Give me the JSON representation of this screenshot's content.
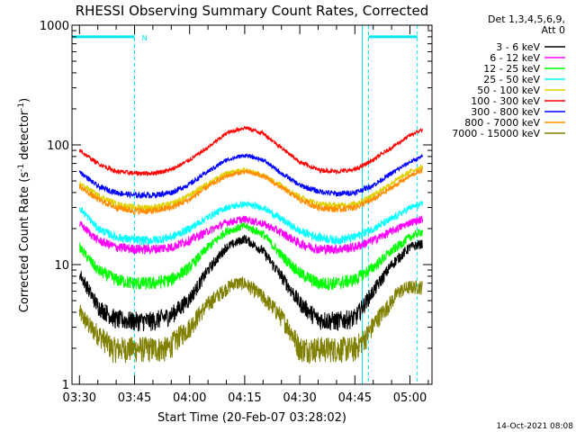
{
  "chart_data": {
    "type": "line",
    "title": "RHESSI Observing Summary Count Rates, Corrected",
    "ylabel": "Corrected Count Rate (s",
    "ylabel_sup1": "-1",
    "ylabel_mid": " detector",
    "ylabel_sup2": "-1",
    "ylabel_end": ")",
    "xlabel": "Start Time (20-Feb-07 03:28:02)",
    "yscale": "log",
    "ylim": [
      1,
      1000
    ],
    "xlim_minutes": [
      -2.03,
      96
    ],
    "x_unit": "minutes after 03:30",
    "y_ticks": [
      {
        "value": 1,
        "label": "1"
      },
      {
        "value": 10,
        "label": "10"
      },
      {
        "value": 100,
        "label": "100"
      },
      {
        "value": 1000,
        "label": "1000"
      }
    ],
    "x_ticks": [
      {
        "value": 0,
        "label": "03:30"
      },
      {
        "value": 15,
        "label": "03:45"
      },
      {
        "value": 30,
        "label": "04:00"
      },
      {
        "value": 45,
        "label": "04:15"
      },
      {
        "value": 60,
        "label": "04:30"
      },
      {
        "value": 75,
        "label": "04:45"
      },
      {
        "value": 90,
        "label": "05:00"
      }
    ],
    "legend_header": [
      "Det 1,3,4,5,6,9,",
      "Att 0"
    ],
    "legend_position": "right",
    "series": [
      {
        "name": "3 - 6 keV",
        "color": "#000000",
        "x": [
          0,
          5,
          10,
          15,
          20,
          25,
          30,
          35,
          40,
          45,
          50,
          55,
          60,
          65,
          70,
          75,
          80,
          85,
          90,
          93.5
        ],
        "y": [
          8.5,
          4.5,
          3.5,
          3.4,
          3.4,
          3.8,
          5.2,
          9,
          14,
          16.5,
          13,
          8,
          4.8,
          3.5,
          3.4,
          3.6,
          6,
          10,
          14,
          15
        ]
      },
      {
        "name": "6 - 12 keV",
        "color": "#ff00ff",
        "x": [
          0,
          5,
          10,
          15,
          20,
          25,
          30,
          35,
          40,
          45,
          50,
          55,
          60,
          65,
          70,
          75,
          80,
          85,
          90,
          93.5
        ],
        "y": [
          22,
          16,
          14,
          13.5,
          13.5,
          14,
          16,
          19,
          22.5,
          24,
          22,
          18.5,
          15,
          13.5,
          13.5,
          14,
          16,
          19,
          22.5,
          24
        ]
      },
      {
        "name": "12 - 25 keV",
        "color": "#00ff00",
        "x": [
          0,
          5,
          10,
          15,
          20,
          25,
          30,
          35,
          40,
          45,
          50,
          55,
          60,
          65,
          70,
          75,
          80,
          85,
          90,
          93.5
        ],
        "y": [
          14,
          9,
          7.5,
          7,
          7,
          7.5,
          9.5,
          14,
          19,
          21,
          18,
          12,
          8.5,
          7,
          7,
          7.5,
          9.5,
          13,
          17,
          19
        ]
      },
      {
        "name": "25 - 50 keV",
        "color": "#00ffff",
        "x": [
          0,
          5,
          10,
          15,
          20,
          25,
          30,
          35,
          40,
          45,
          50,
          55,
          60,
          65,
          70,
          75,
          80,
          85,
          90,
          93.5
        ],
        "y": [
          30,
          20,
          17,
          16,
          16,
          17,
          20,
          25,
          30,
          32,
          30,
          24,
          19,
          17,
          16,
          17,
          20,
          24,
          30,
          32
        ]
      },
      {
        "name": "50 - 100 keV",
        "color": "#e0d000",
        "x": [
          0,
          5,
          10,
          15,
          20,
          25,
          30,
          35,
          40,
          45,
          50,
          55,
          60,
          65,
          70,
          75,
          80,
          85,
          90,
          93.5
        ],
        "y": [
          48,
          38,
          32,
          30,
          30,
          32,
          38,
          48,
          58,
          62,
          56,
          46,
          37,
          32,
          31,
          32,
          38,
          48,
          60,
          66
        ]
      },
      {
        "name": "100 - 300 keV",
        "color": "#ff0000",
        "x": [
          0,
          5,
          10,
          15,
          20,
          25,
          30,
          35,
          40,
          45,
          50,
          55,
          60,
          65,
          70,
          75,
          80,
          85,
          90,
          93.5
        ],
        "y": [
          90,
          70,
          60,
          58,
          58,
          62,
          75,
          95,
          125,
          140,
          125,
          95,
          72,
          62,
          60,
          62,
          75,
          95,
          120,
          135
        ]
      },
      {
        "name": "300 - 800 keV",
        "color": "#0000ff",
        "x": [
          0,
          5,
          10,
          15,
          20,
          25,
          30,
          35,
          40,
          45,
          50,
          55,
          60,
          65,
          70,
          75,
          80,
          85,
          90,
          93.5
        ],
        "y": [
          60,
          45,
          40,
          38,
          38,
          40,
          47,
          60,
          75,
          82,
          75,
          58,
          46,
          41,
          39,
          40,
          46,
          58,
          72,
          80
        ]
      },
      {
        "name": "800 - 7000 keV",
        "color": "#ff8c00",
        "x": [
          0,
          5,
          10,
          15,
          20,
          25,
          30,
          35,
          40,
          45,
          50,
          55,
          60,
          65,
          70,
          75,
          80,
          85,
          90,
          93.5
        ],
        "y": [
          45,
          35,
          30,
          28,
          28,
          30,
          35,
          45,
          55,
          60,
          55,
          44,
          35,
          30,
          29,
          30,
          35,
          44,
          55,
          62
        ]
      },
      {
        "name": "7000 - 15000 keV",
        "color": "#808000",
        "x": [
          0,
          3,
          6,
          9,
          12,
          15,
          18,
          21,
          24,
          27,
          30,
          33,
          36,
          39,
          42,
          45,
          48,
          51,
          54,
          57,
          60,
          63,
          66,
          69,
          72,
          75,
          78,
          81,
          84,
          87,
          90,
          93.5
        ],
        "y": [
          4,
          3,
          2.5,
          2,
          2,
          2,
          2,
          2,
          2,
          2.5,
          3,
          4,
          5,
          6,
          7,
          7,
          6,
          5,
          4,
          3,
          2,
          2,
          2,
          2,
          2,
          2,
          2.5,
          3.5,
          4.5,
          6,
          6.5,
          6.5
        ]
      }
    ],
    "attenuator_bar": {
      "level": 800,
      "color": "#00e5ee",
      "label": "N",
      "segments": [
        [
          -2.03,
          15
        ],
        [
          78.7,
          92
        ]
      ]
    },
    "vertical_markers": [
      {
        "x": 15,
        "color": "#00e5ee",
        "style": "dashed"
      },
      {
        "x": 77,
        "color": "#00e5ee",
        "style": "solid"
      },
      {
        "x": 78.7,
        "color": "#00e5ee",
        "style": "dashed"
      },
      {
        "x": 92,
        "color": "#00e5ee",
        "style": "dashed"
      }
    ],
    "grid": false
  },
  "footer": {
    "timestamp": "14-Oct-2021 08:08"
  }
}
